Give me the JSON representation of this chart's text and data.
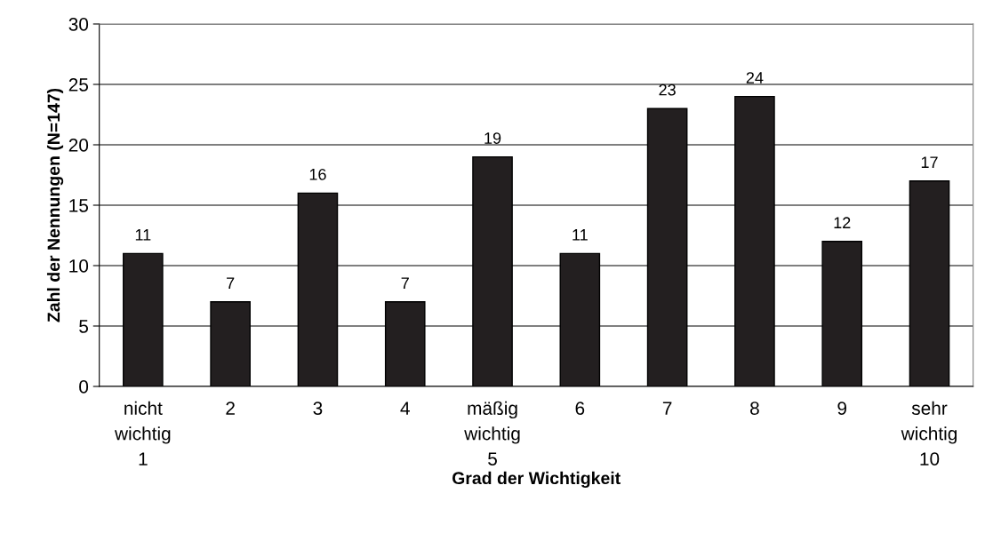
{
  "chart_data": {
    "type": "bar",
    "xlabel": "Grad der Wichtigkeit",
    "ylabel": "Zahl der Nennungen (N=147)",
    "categories": [
      "nicht\nwichtig\n1",
      "2",
      "3",
      "4",
      "mäßig\nwichtig\n5",
      "6",
      "7",
      "8",
      "9",
      "sehr\nwichtig\n10"
    ],
    "values": [
      11,
      7,
      16,
      7,
      19,
      11,
      23,
      24,
      12,
      17
    ],
    "color": "#231f20",
    "ylim": [
      0,
      30
    ],
    "yticks": [
      0,
      5,
      10,
      15,
      20,
      25,
      30
    ],
    "grid": "y",
    "data_labels": true,
    "legend": false
  }
}
